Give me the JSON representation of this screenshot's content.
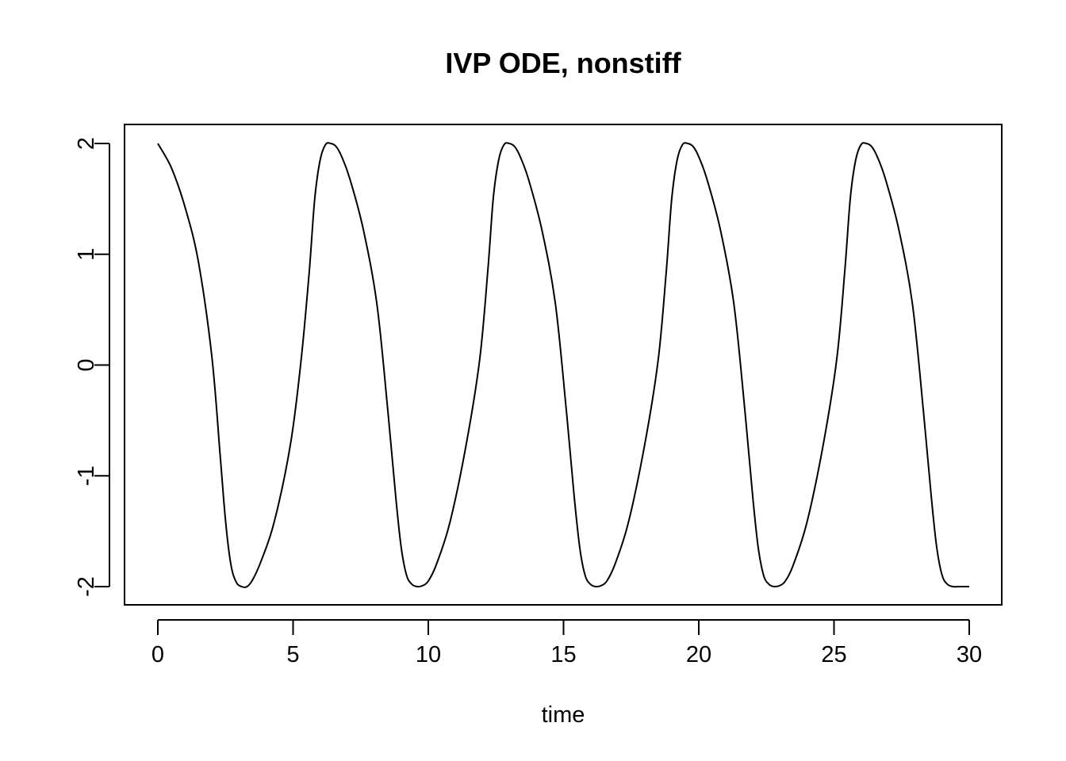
{
  "chart_data": {
    "type": "line",
    "title": "IVP ODE, nonstiff",
    "xlabel": "time",
    "ylabel": "",
    "xlim": [
      0,
      30
    ],
    "ylim": [
      -2,
      2
    ],
    "x_ticks": [
      0,
      5,
      10,
      15,
      20,
      25,
      30
    ],
    "x_tick_labels": [
      "0",
      "5",
      "10",
      "15",
      "20",
      "25",
      "30"
    ],
    "y_ticks": [
      -2,
      -1,
      0,
      1,
      2
    ],
    "y_tick_labels": [
      "-2",
      "-1",
      "0",
      "1",
      "2"
    ],
    "grid": false,
    "legend": "none",
    "series": [
      {
        "color": "#000000",
        "x": [
          0,
          0.5,
          1,
          1.5,
          2,
          2.3,
          2.5,
          2.7,
          2.9,
          3.1,
          3.3,
          3.5,
          3.8,
          4.3,
          4.9,
          5.3,
          5.6,
          5.8,
          6.0,
          6.2,
          6.4,
          6.6,
          6.8,
          7.1,
          7.6,
          8.1,
          8.5,
          8.8,
          9.0,
          9.2,
          9.4,
          9.6,
          9.8,
          10.0,
          10.3,
          10.8,
          11.4,
          11.9,
          12.2,
          12.4,
          12.6,
          12.8,
          13.0,
          13.2,
          13.4,
          13.7,
          14.2,
          14.7,
          15.1,
          15.4,
          15.6,
          15.8,
          16.0,
          16.2,
          16.4,
          16.6,
          16.9,
          17.4,
          18.0,
          18.5,
          18.8,
          19.0,
          19.2,
          19.4,
          19.6,
          19.8,
          20.0,
          20.3,
          20.8,
          21.3,
          21.7,
          22.0,
          22.2,
          22.4,
          22.6,
          22.8,
          23.0,
          23.2,
          23.5,
          24.0,
          24.6,
          25.1,
          25.4,
          25.6,
          25.8,
          26.0,
          26.2,
          26.4,
          26.6,
          26.9,
          27.4,
          27.9,
          28.3,
          28.6,
          28.8,
          29.0,
          29.2,
          29.4,
          29.6,
          29.8,
          30.0
        ],
        "y": [
          2.0,
          1.78,
          1.43,
          0.93,
          0.07,
          -0.8,
          -1.4,
          -1.8,
          -1.96,
          -2.0,
          -2.0,
          -1.94,
          -1.78,
          -1.42,
          -0.72,
          0.05,
          0.85,
          1.5,
          1.85,
          1.99,
          2.0,
          1.97,
          1.88,
          1.68,
          1.22,
          0.55,
          -0.4,
          -1.2,
          -1.65,
          -1.9,
          -1.98,
          -2.0,
          -1.99,
          -1.95,
          -1.8,
          -1.42,
          -0.72,
          0.05,
          0.85,
          1.5,
          1.85,
          1.99,
          2.0,
          1.97,
          1.88,
          1.68,
          1.22,
          0.55,
          -0.4,
          -1.2,
          -1.65,
          -1.9,
          -1.98,
          -2.0,
          -1.99,
          -1.95,
          -1.8,
          -1.42,
          -0.72,
          0.05,
          0.85,
          1.5,
          1.85,
          1.99,
          2.0,
          1.97,
          1.88,
          1.68,
          1.22,
          0.55,
          -0.4,
          -1.2,
          -1.65,
          -1.9,
          -1.98,
          -2.0,
          -1.99,
          -1.95,
          -1.8,
          -1.42,
          -0.72,
          0.05,
          0.85,
          1.5,
          1.85,
          1.99,
          2.0,
          1.97,
          1.88,
          1.68,
          1.22,
          0.55,
          -0.4,
          -1.2,
          -1.65,
          -1.9,
          -1.98,
          -2.0,
          -2.0,
          -2.0,
          -2.0
        ]
      }
    ]
  }
}
